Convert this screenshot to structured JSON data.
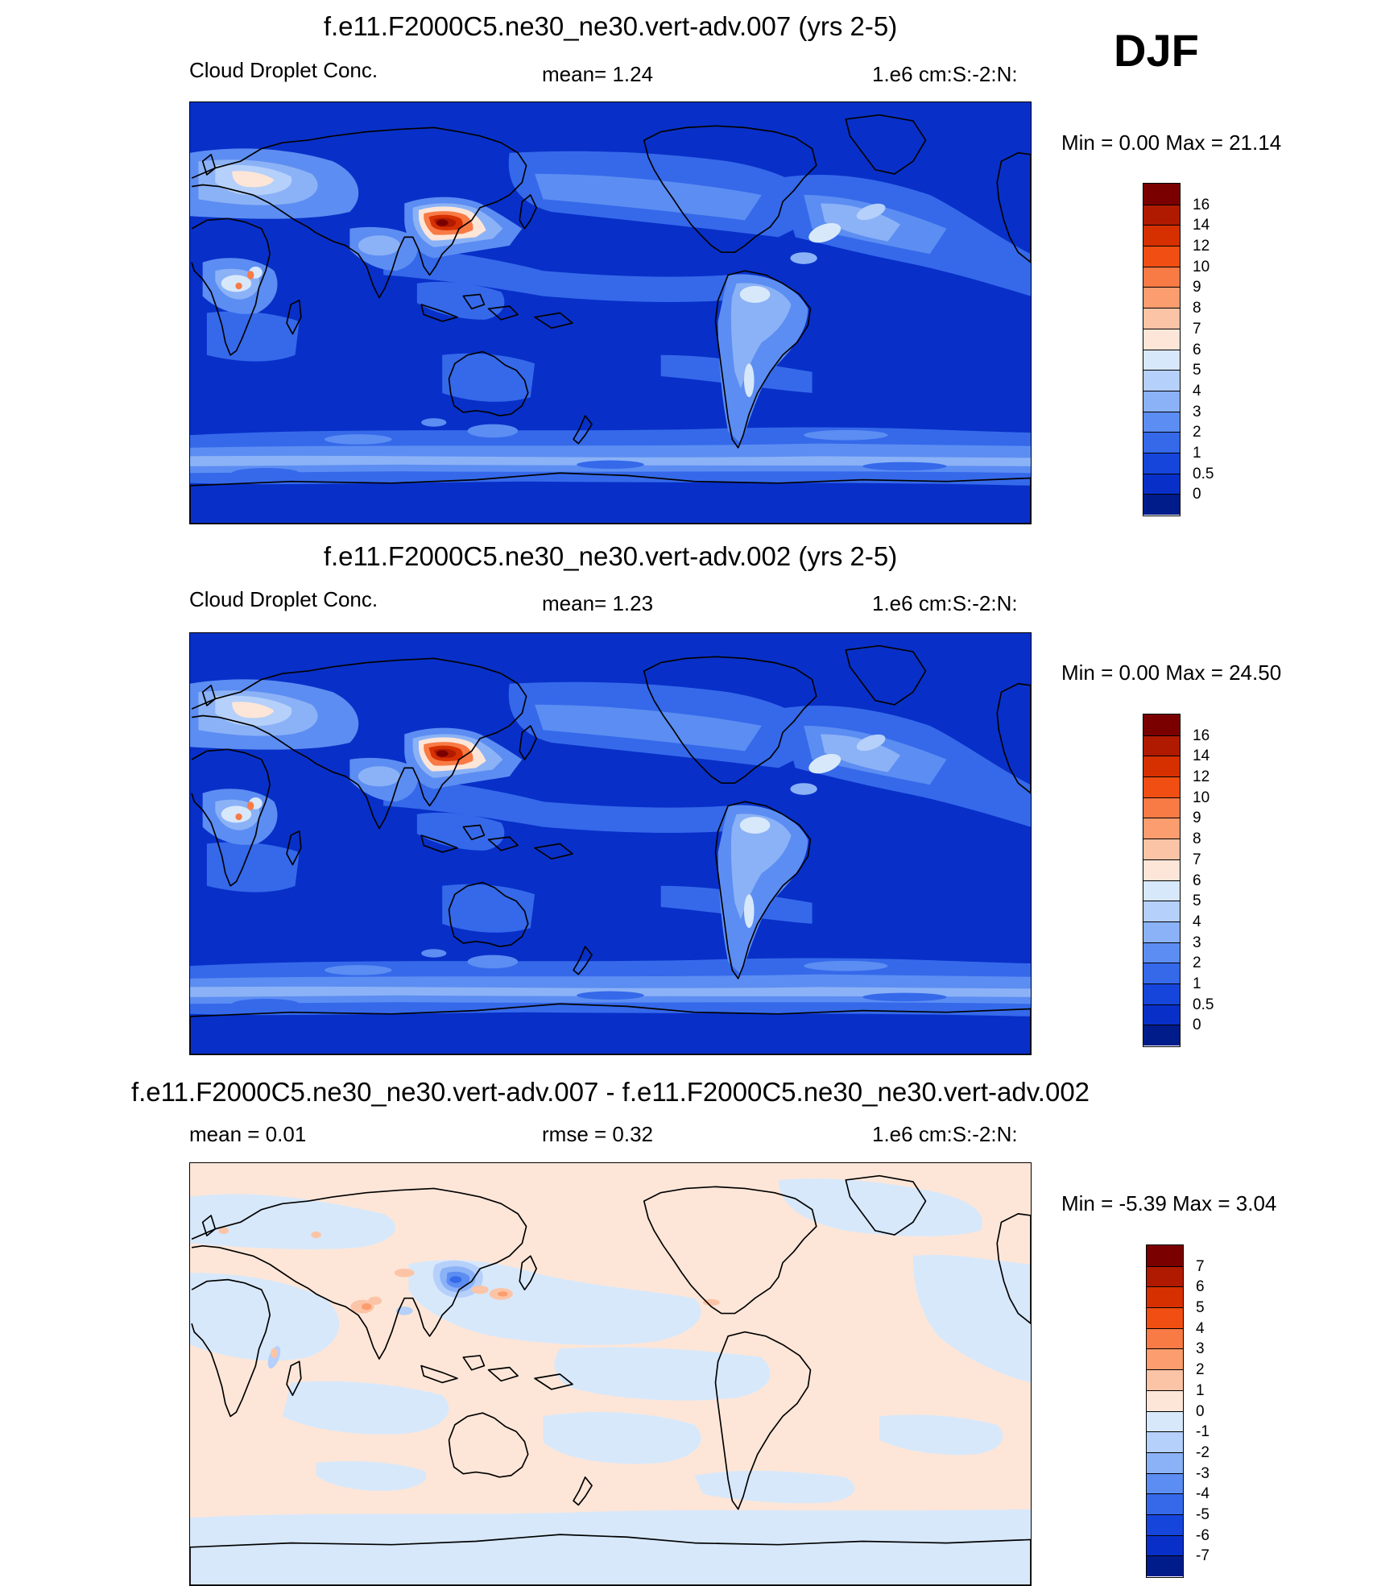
{
  "season": "DJF",
  "panels": [
    {
      "title": "f.e11.F2000C5.ne30_ne30.vert-adv.007 (yrs 2-5)",
      "left_label": "Cloud Droplet Conc.",
      "center_label": "mean=   1.24",
      "right_label": "1.e6 cm:S:-2:N:",
      "minmax": "Min =   0.00 Max =  21.14",
      "map_kind": "field",
      "colorbar": {
        "labels": [
          "16",
          "14",
          "12",
          "10",
          "9",
          "8",
          "7",
          "6",
          "5",
          "4",
          "3",
          "2",
          "1",
          "0.5",
          "0"
        ],
        "colors": [
          "#7a0000",
          "#b01a00",
          "#d63000",
          "#f04e12",
          "#f87a45",
          "#fb9d6e",
          "#fcc4a6",
          "#fde6d8",
          "#d7e8fb",
          "#b5d0fa",
          "#8bb2f6",
          "#5c8df2",
          "#3569ea",
          "#1645dc",
          "#0830c8",
          "#001c8a"
        ]
      }
    },
    {
      "title": "f.e11.F2000C5.ne30_ne30.vert-adv.002 (yrs 2-5)",
      "left_label": "Cloud Droplet Conc.",
      "center_label": "mean=   1.23",
      "right_label": "1.e6 cm:S:-2:N:",
      "minmax": "Min =   0.00 Max =  24.50",
      "map_kind": "field",
      "colorbar": {
        "labels": [
          "16",
          "14",
          "12",
          "10",
          "9",
          "8",
          "7",
          "6",
          "5",
          "4",
          "3",
          "2",
          "1",
          "0.5",
          "0"
        ],
        "colors": [
          "#7a0000",
          "#b01a00",
          "#d63000",
          "#f04e12",
          "#f87a45",
          "#fb9d6e",
          "#fcc4a6",
          "#fde6d8",
          "#d7e8fb",
          "#b5d0fa",
          "#8bb2f6",
          "#5c8df2",
          "#3569ea",
          "#1645dc",
          "#0830c8",
          "#001c8a"
        ]
      }
    },
    {
      "title": "f.e11.F2000C5.ne30_ne30.vert-adv.007 - f.e11.F2000C5.ne30_ne30.vert-adv.002",
      "left_label": "mean =   0.01",
      "center_label": "rmse =   0.32",
      "right_label": "1.e6 cm:S:-2:N:",
      "minmax": "Min =  -5.39 Max =   3.04",
      "map_kind": "diff",
      "colorbar": {
        "labels": [
          "7",
          "6",
          "5",
          "4",
          "3",
          "2",
          "1",
          "0",
          "-1",
          "-2",
          "-3",
          "-4",
          "-5",
          "-6",
          "-7"
        ],
        "colors": [
          "#7a0000",
          "#b01a00",
          "#d63000",
          "#f04e12",
          "#f87a45",
          "#fb9d6e",
          "#fcc4a6",
          "#fde6d8",
          "#d7e8fb",
          "#b5d0fa",
          "#8bb2f6",
          "#5c8df2",
          "#3569ea",
          "#1645dc",
          "#0830c8",
          "#001c8a"
        ]
      }
    }
  ]
}
